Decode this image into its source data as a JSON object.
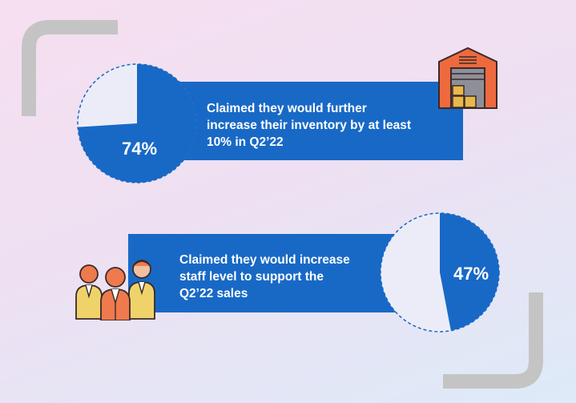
{
  "colors": {
    "brand_blue": "#1869c6",
    "pie_track": "#ececf8",
    "bracket_gray": "#c4c4c4",
    "icon_outline": "#3a2a2a"
  },
  "stats": [
    {
      "percent": 74,
      "value_label": "74%",
      "text_lines": [
        "Claimed they would further",
        "increase their inventory by at least",
        "10% in Q2’22"
      ],
      "icon": "warehouse-icon"
    },
    {
      "percent": 47,
      "value_label": "47%",
      "text_lines": [
        "Claimed they would increase",
        "staff level to support the",
        "Q2’22 sales"
      ],
      "icon": "team-people-icon"
    }
  ]
}
